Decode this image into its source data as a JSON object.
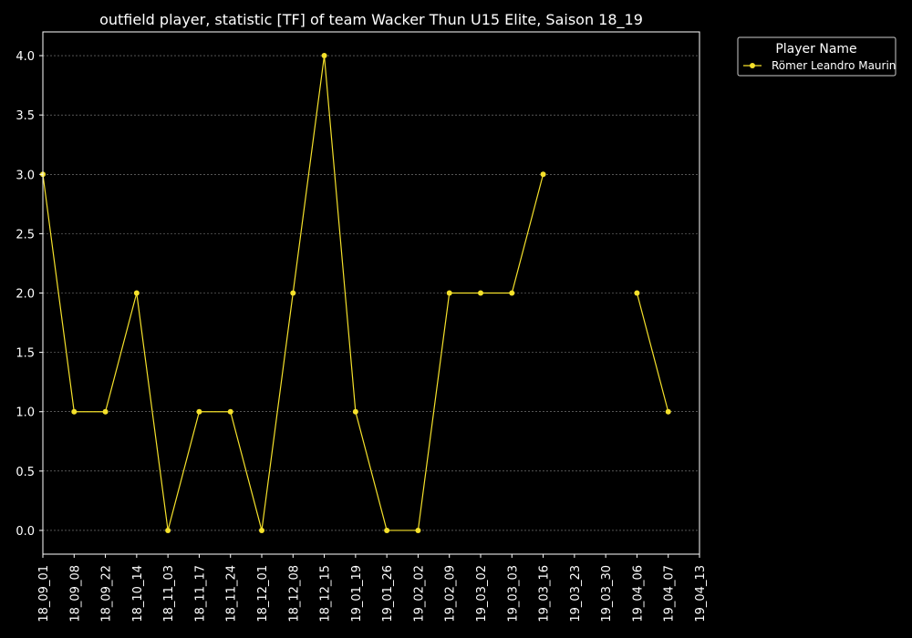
{
  "chart_data": {
    "type": "line",
    "title": "outfield player, statistic [TF] of team Wacker Thun U15 Elite, Saison 18_19",
    "xlabel": "",
    "ylabel": "",
    "categories": [
      "18_09_01",
      "18_09_08",
      "18_09_22",
      "18_10_14",
      "18_11_03",
      "18_11_17",
      "18_11_24",
      "18_12_01",
      "18_12_08",
      "18_12_15",
      "19_01_19",
      "19_01_26",
      "19_02_02",
      "19_02_09",
      "19_03_02",
      "19_03_03",
      "19_03_16",
      "19_03_23",
      "19_03_30",
      "19_04_06",
      "19_04_07",
      "19_04_13"
    ],
    "ylim": [
      -0.2,
      4.2
    ],
    "yticks": [
      0.0,
      0.5,
      1.0,
      1.5,
      2.0,
      2.5,
      3.0,
      3.5,
      4.0
    ],
    "ytick_labels": [
      "0.0",
      "0.5",
      "1.0",
      "1.5",
      "2.0",
      "2.5",
      "3.0",
      "3.5",
      "4.0"
    ],
    "grid": true,
    "legend": {
      "title": "Player Name",
      "placement": "outside-top-right"
    },
    "series": [
      {
        "name": "Römer Leandro Maurin",
        "color": "#f5e12b",
        "values": [
          3,
          1,
          1,
          2,
          0,
          1,
          1,
          0,
          2,
          4,
          1,
          0,
          0,
          2,
          2,
          2,
          3,
          null,
          null,
          2,
          1,
          null
        ]
      }
    ]
  }
}
